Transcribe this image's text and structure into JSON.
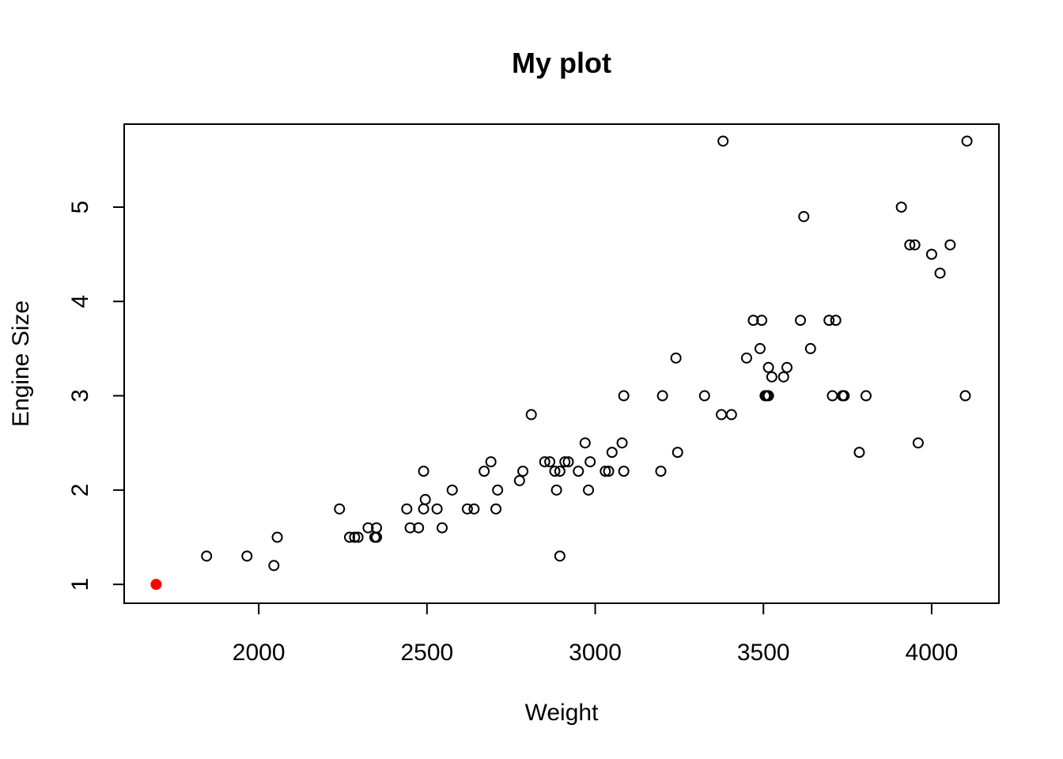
{
  "chart_data": {
    "type": "scatter",
    "title": "My plot",
    "xlabel": "Weight",
    "ylabel": "Engine Size",
    "xlim": [
      1600,
      4200
    ],
    "ylim": [
      0.8,
      5.88
    ],
    "xticks": [
      2000,
      2500,
      3000,
      3500,
      4000
    ],
    "yticks": [
      1,
      2,
      3,
      4,
      5
    ],
    "grid": false,
    "legend": "none",
    "colors": {
      "points": "#000000",
      "highlight": "#ff0000",
      "frame": "#000000"
    },
    "series": [
      {
        "marker": "open-circle",
        "points": [
          [
            1845,
            1.3
          ],
          [
            1965,
            1.3
          ],
          [
            2045,
            1.2
          ],
          [
            2055,
            1.5
          ],
          [
            2240,
            1.8
          ],
          [
            2270,
            1.5
          ],
          [
            2285,
            1.5
          ],
          [
            2295,
            1.5
          ],
          [
            2325,
            1.6
          ],
          [
            2345,
            1.5
          ],
          [
            2350,
            1.6
          ],
          [
            2350,
            1.5
          ],
          [
            2440,
            1.8
          ],
          [
            2450,
            1.6
          ],
          [
            2475,
            1.6
          ],
          [
            2490,
            2.2
          ],
          [
            2490,
            1.8
          ],
          [
            2495,
            1.9
          ],
          [
            2530,
            1.8
          ],
          [
            2545,
            1.6
          ],
          [
            2575,
            2.0
          ],
          [
            2620,
            1.8
          ],
          [
            2640,
            1.8
          ],
          [
            2670,
            2.2
          ],
          [
            2690,
            2.3
          ],
          [
            2705,
            1.8
          ],
          [
            2710,
            2.0
          ],
          [
            2775,
            2.1
          ],
          [
            2785,
            2.2
          ],
          [
            2810,
            2.8
          ],
          [
            2850,
            2.3
          ],
          [
            2865,
            2.3
          ],
          [
            2880,
            2.2
          ],
          [
            2885,
            2.0
          ],
          [
            2895,
            1.3
          ],
          [
            2895,
            2.2
          ],
          [
            2910,
            2.3
          ],
          [
            2920,
            2.3
          ],
          [
            2950,
            2.2
          ],
          [
            2970,
            2.5
          ],
          [
            2980,
            2.0
          ],
          [
            2985,
            2.3
          ],
          [
            3030,
            2.2
          ],
          [
            3040,
            2.2
          ],
          [
            3050,
            2.4
          ],
          [
            3080,
            2.5
          ],
          [
            3085,
            2.2
          ],
          [
            3085,
            3.0
          ],
          [
            3195,
            2.2
          ],
          [
            3200,
            3.0
          ],
          [
            3240,
            3.4
          ],
          [
            3245,
            2.4
          ],
          [
            3325,
            3.0
          ],
          [
            3375,
            2.8
          ],
          [
            3380,
            5.7
          ],
          [
            3405,
            2.8
          ],
          [
            3450,
            3.4
          ],
          [
            3470,
            3.8
          ],
          [
            3490,
            3.5
          ],
          [
            3495,
            3.8
          ],
          [
            3505,
            3.0
          ],
          [
            3510,
            3.0
          ],
          [
            3515,
            3.3
          ],
          [
            3515,
            3.0
          ],
          [
            3525,
            3.2
          ],
          [
            3560,
            3.2
          ],
          [
            3570,
            3.3
          ],
          [
            3610,
            3.8
          ],
          [
            3620,
            4.9
          ],
          [
            3640,
            3.5
          ],
          [
            3695,
            3.8
          ],
          [
            3705,
            3.0
          ],
          [
            3715,
            3.8
          ],
          [
            3735,
            3.0
          ],
          [
            3740,
            3.0
          ],
          [
            3785,
            2.4
          ],
          [
            3805,
            3.0
          ],
          [
            3910,
            5.0
          ],
          [
            3935,
            4.6
          ],
          [
            3950,
            4.6
          ],
          [
            3960,
            2.5
          ],
          [
            4000,
            4.5
          ],
          [
            4025,
            4.3
          ],
          [
            4055,
            4.6
          ],
          [
            4100,
            3.0
          ],
          [
            4105,
            5.7
          ]
        ]
      },
      {
        "marker": "filled-circle",
        "points": [
          [
            1695,
            1.0
          ]
        ]
      }
    ]
  }
}
